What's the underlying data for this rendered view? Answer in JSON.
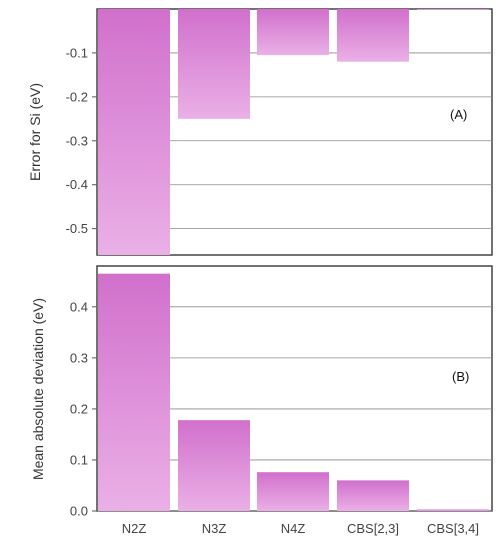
{
  "chart_data": [
    {
      "type": "bar",
      "panel_label": "(A)",
      "ylabel": "Error for Si (eV)",
      "categories": [
        "N2Z",
        "N3Z",
        "N4Z",
        "CBS[2,3]",
        "CBS[3,4]"
      ],
      "values": [
        -0.56,
        -0.25,
        -0.105,
        -0.12,
        0.0
      ],
      "ylim": [
        -0.56,
        0.0
      ],
      "yticks": [
        -0.1,
        -0.2,
        -0.3,
        -0.4,
        -0.5
      ],
      "ytick_labels": [
        "-0.1",
        "-0.2",
        "-0.3",
        "-0.4",
        "-0.5"
      ],
      "grid": true,
      "color": "#d574cf"
    },
    {
      "type": "bar",
      "panel_label": "(B)",
      "ylabel": "Mean absolute deviation (eV)",
      "categories": [
        "N2Z",
        "N3Z",
        "N4Z",
        "CBS[2,3]",
        "CBS[3,4]"
      ],
      "xtick_labels": [
        "N2Z",
        "N3Z",
        "N4Z",
        "CBS[2,3]",
        "CBS[3,4]"
      ],
      "values": [
        0.465,
        0.178,
        0.076,
        0.06,
        0.003
      ],
      "ylim": [
        0.0,
        0.48
      ],
      "yticks": [
        0.0,
        0.1,
        0.2,
        0.3,
        0.4
      ],
      "ytick_labels": [
        "0.0",
        "0.1",
        "0.2",
        "0.3",
        "0.4"
      ],
      "grid": true,
      "color": "#d574cf"
    }
  ]
}
